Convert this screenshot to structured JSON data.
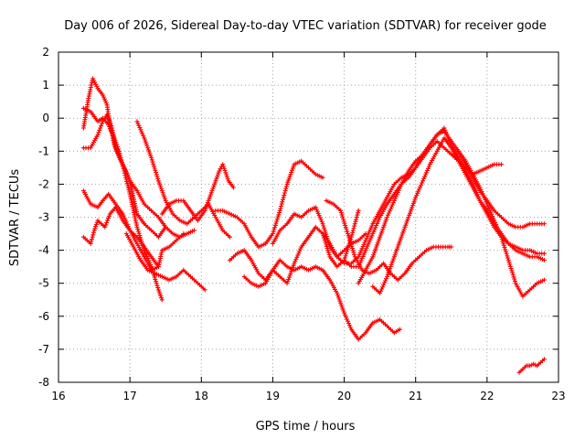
{
  "chart_data": {
    "type": "line",
    "title": "Day 006 of 2026, Sidereal Day-to-day VTEC variation (SDTVAR) for receiver gode",
    "xlabel": "GPS time / hours",
    "ylabel": "SDTVAR / TECUs",
    "xlim": [
      16,
      23
    ],
    "ylim": [
      -8,
      2
    ],
    "xticks": [
      16,
      17,
      18,
      19,
      20,
      21,
      22,
      23
    ],
    "yticks": [
      -8,
      -7,
      -6,
      -5,
      -4,
      -3,
      -2,
      -1,
      0,
      1,
      2
    ],
    "grid": true,
    "marker": "plus",
    "color": "#ff0000",
    "series": [
      {
        "name": "s1",
        "x": [
          16.35,
          16.42,
          16.48,
          16.55,
          16.62,
          16.68,
          16.72,
          16.78,
          16.85,
          16.92,
          17.0,
          17.05,
          17.1,
          17.2,
          17.3,
          17.4,
          17.5
        ],
        "y": [
          -0.3,
          0.6,
          1.2,
          0.9,
          0.7,
          0.4,
          -0.2,
          -0.8,
          -1.2,
          -1.5,
          -1.9,
          -2.4,
          -2.9,
          -3.2,
          -3.4,
          -3.6,
          -3.3
        ]
      },
      {
        "name": "s2",
        "x": [
          16.35,
          16.45,
          16.55,
          16.62,
          16.7,
          16.78,
          16.85,
          16.92,
          17.0,
          17.05,
          17.1,
          17.2,
          17.3,
          17.4,
          17.45
        ],
        "y": [
          0.3,
          0.2,
          -0.1,
          0.0,
          -0.2,
          -0.6,
          -1.0,
          -1.6,
          -2.3,
          -2.8,
          -3.3,
          -4.0,
          -4.5,
          -5.2,
          -5.5
        ]
      },
      {
        "name": "s3",
        "x": [
          16.35,
          16.45,
          16.55,
          16.62,
          16.68,
          16.75,
          16.8,
          16.9,
          17.0,
          17.1,
          17.2,
          17.3,
          17.4,
          17.5,
          17.6,
          17.7,
          17.8,
          17.9
        ],
        "y": [
          -0.9,
          -0.9,
          -0.5,
          -0.1,
          0.1,
          -0.3,
          -0.9,
          -1.4,
          -1.9,
          -2.2,
          -2.6,
          -2.8,
          -3.0,
          -3.3,
          -3.5,
          -3.6,
          -3.5,
          -3.4
        ]
      },
      {
        "name": "s4",
        "x": [
          16.35,
          16.45,
          16.55,
          16.62,
          16.7,
          16.8,
          16.9,
          17.0,
          17.1,
          17.2,
          17.3,
          17.4,
          17.45,
          17.55,
          17.65,
          17.75
        ],
        "y": [
          -2.2,
          -2.6,
          -2.7,
          -2.5,
          -2.3,
          -2.6,
          -2.9,
          -3.4,
          -3.8,
          -4.2,
          -4.6,
          -4.5,
          -4.0,
          -3.9,
          -3.7,
          -3.5
        ]
      },
      {
        "name": "s5",
        "x": [
          16.35,
          16.45,
          16.5,
          16.55,
          16.65,
          16.72,
          16.8,
          16.9,
          17.0,
          17.1,
          17.2,
          17.3,
          17.4
        ],
        "y": [
          -3.6,
          -3.8,
          -3.4,
          -3.1,
          -3.3,
          -2.9,
          -2.7,
          -3.1,
          -3.4,
          -3.6,
          -3.9,
          -4.2,
          -4.5
        ]
      },
      {
        "name": "s6",
        "x": [
          16.95,
          17.05,
          17.15,
          17.25,
          17.35,
          17.45,
          17.55,
          17.65,
          17.75,
          17.85,
          17.95,
          18.05
        ],
        "y": [
          -3.5,
          -3.9,
          -4.3,
          -4.6,
          -4.7,
          -4.8,
          -4.9,
          -4.8,
          -4.6,
          -4.8,
          -5.0,
          -5.2
        ]
      },
      {
        "name": "s7",
        "x": [
          17.1,
          17.2,
          17.3,
          17.4,
          17.5,
          17.6,
          17.7,
          17.8,
          17.9,
          18.0,
          18.1,
          18.2,
          18.3,
          18.4
        ],
        "y": [
          -0.1,
          -0.6,
          -1.2,
          -1.9,
          -2.5,
          -2.9,
          -3.1,
          -3.2,
          -3.0,
          -2.8,
          -2.6,
          -3.0,
          -3.4,
          -3.6
        ]
      },
      {
        "name": "s8",
        "x": [
          17.45,
          17.55,
          17.65,
          17.75,
          17.85,
          17.95,
          18.05,
          18.15,
          18.25,
          18.3,
          18.38,
          18.45
        ],
        "y": [
          -2.9,
          -2.6,
          -2.5,
          -2.5,
          -2.8,
          -3.1,
          -2.8,
          -2.2,
          -1.6,
          -1.4,
          -1.9,
          -2.1
        ]
      },
      {
        "name": "s9",
        "x": [
          18.2,
          18.3,
          18.4,
          18.5,
          18.6,
          18.7,
          18.8,
          18.9,
          19.0,
          19.1,
          19.2,
          19.3,
          19.4,
          19.5,
          19.6,
          19.7
        ],
        "y": [
          -2.8,
          -2.8,
          -2.9,
          -3.0,
          -3.2,
          -3.6,
          -3.9,
          -3.8,
          -3.5,
          -2.8,
          -2.0,
          -1.4,
          -1.3,
          -1.5,
          -1.7,
          -1.8
        ]
      },
      {
        "name": "s10",
        "x": [
          18.4,
          18.5,
          18.6,
          18.7,
          18.8,
          18.9,
          19.0,
          19.1,
          19.2,
          19.3,
          19.4,
          19.5,
          19.6,
          19.7,
          19.8,
          19.9,
          20.0,
          20.1,
          20.2
        ],
        "y": [
          -4.3,
          -4.1,
          -4.0,
          -4.3,
          -4.7,
          -4.9,
          -4.6,
          -4.8,
          -5.0,
          -4.4,
          -3.9,
          -3.6,
          -3.3,
          -3.5,
          -4.2,
          -4.5,
          -4.3,
          -3.6,
          -2.8
        ]
      },
      {
        "name": "s11",
        "x": [
          18.6,
          18.7,
          18.8,
          18.9,
          19.0,
          19.1,
          19.2,
          19.3,
          19.4,
          19.5,
          19.6,
          19.7,
          19.8,
          19.9,
          20.0,
          20.1,
          20.2,
          20.3,
          20.4,
          20.5,
          20.6,
          20.7,
          20.78
        ],
        "y": [
          -4.8,
          -5.0,
          -5.1,
          -5.0,
          -4.6,
          -4.3,
          -4.5,
          -4.6,
          -4.5,
          -4.6,
          -4.5,
          -4.6,
          -4.9,
          -5.3,
          -5.9,
          -6.4,
          -6.7,
          -6.5,
          -6.2,
          -6.1,
          -6.3,
          -6.5,
          -6.4
        ]
      },
      {
        "name": "s12",
        "x": [
          19.0,
          19.1,
          19.2,
          19.3,
          19.4,
          19.5,
          19.6,
          19.7,
          19.8,
          19.9,
          20.0,
          20.1,
          20.2,
          20.3
        ],
        "y": [
          -3.8,
          -3.4,
          -3.2,
          -2.9,
          -3.0,
          -2.8,
          -2.7,
          -3.2,
          -3.9,
          -4.2,
          -4.0,
          -3.8,
          -3.7,
          -3.5
        ]
      },
      {
        "name": "s13",
        "x": [
          19.7,
          19.8,
          19.9,
          20.0,
          20.1,
          20.2,
          20.3,
          20.4,
          20.5,
          20.6,
          20.7,
          20.8,
          20.9,
          21.0,
          21.1,
          21.2,
          21.3,
          21.4,
          21.5,
          21.6,
          21.7,
          21.8,
          21.9,
          22.0,
          22.1,
          22.2
        ],
        "y": [
          -3.5,
          -3.8,
          -4.2,
          -4.4,
          -4.4,
          -4.2,
          -3.7,
          -3.2,
          -2.8,
          -2.4,
          -2.0,
          -1.8,
          -1.7,
          -1.5,
          -1.2,
          -0.9,
          -0.7,
          -0.9,
          -1.1,
          -1.3,
          -1.5,
          -1.7,
          -1.6,
          -1.5,
          -1.4,
          -1.4
        ]
      },
      {
        "name": "s14",
        "x": [
          20.0,
          20.1,
          20.2,
          20.3,
          20.4,
          20.5,
          20.6,
          20.7,
          20.8,
          20.9,
          21.0,
          21.1,
          21.2,
          21.3,
          21.4,
          21.5,
          21.6,
          21.7,
          21.8,
          21.9,
          22.0,
          22.1,
          22.2,
          22.3,
          22.4,
          22.5,
          22.6,
          22.7,
          22.8
        ],
        "y": [
          -4.3,
          -4.5,
          -4.5,
          -4.0,
          -3.5,
          -3.0,
          -2.6,
          -2.3,
          -2.0,
          -1.8,
          -1.5,
          -1.1,
          -0.8,
          -0.5,
          -0.4,
          -0.7,
          -1.0,
          -1.4,
          -1.8,
          -2.2,
          -2.5,
          -2.8,
          -3.0,
          -3.2,
          -3.3,
          -3.3,
          -3.2,
          -3.2,
          -3.2
        ]
      },
      {
        "name": "s15",
        "x": [
          20.2,
          20.3,
          20.4,
          20.5,
          20.6,
          20.7,
          20.8,
          20.9,
          21.0,
          21.1,
          21.2,
          21.3,
          21.4,
          21.5,
          21.6,
          21.7,
          21.8,
          21.9,
          22.0,
          22.1,
          22.2,
          22.3,
          22.4,
          22.5,
          22.6,
          22.7,
          22.8
        ],
        "y": [
          -5.0,
          -4.6,
          -4.2,
          -3.6,
          -3.0,
          -2.5,
          -2.0,
          -1.6,
          -1.3,
          -1.1,
          -0.8,
          -0.5,
          -0.3,
          -0.8,
          -1.2,
          -1.6,
          -2.0,
          -2.5,
          -2.9,
          -3.3,
          -3.6,
          -3.8,
          -3.9,
          -4.0,
          -4.0,
          -4.1,
          -4.1
        ]
      },
      {
        "name": "s16",
        "x": [
          20.4,
          20.5,
          20.6,
          20.7,
          20.8,
          20.9,
          21.0,
          21.1,
          21.2,
          21.3,
          21.4,
          21.5,
          21.6,
          21.7,
          21.8,
          21.9,
          22.0,
          22.1,
          22.2,
          22.3,
          22.4,
          22.5,
          22.6,
          22.7,
          22.8
        ],
        "y": [
          -5.1,
          -5.3,
          -4.8,
          -4.2,
          -3.6,
          -3.0,
          -2.4,
          -1.9,
          -1.4,
          -1.0,
          -0.6,
          -0.9,
          -1.3,
          -1.7,
          -2.1,
          -2.5,
          -2.8,
          -3.2,
          -3.5,
          -3.8,
          -4.0,
          -4.1,
          -4.2,
          -4.2,
          -4.3
        ]
      },
      {
        "name": "s17",
        "x": [
          19.75,
          19.85,
          19.95,
          20.05,
          20.15,
          20.25,
          20.35,
          20.45,
          20.55,
          20.65,
          20.75,
          20.85,
          20.95,
          21.05,
          21.15,
          21.25,
          21.35,
          21.45,
          21.5
        ],
        "y": [
          -2.5,
          -2.6,
          -2.8,
          -3.5,
          -4.2,
          -4.6,
          -4.7,
          -4.6,
          -4.4,
          -4.7,
          -4.9,
          -4.7,
          -4.4,
          -4.2,
          -4.0,
          -3.9,
          -3.9,
          -3.9,
          -3.9
        ]
      },
      {
        "name": "s18",
        "x": [
          21.6,
          21.7,
          21.8,
          21.9,
          22.0,
          22.1,
          22.2,
          22.3,
          22.4,
          22.5,
          22.6,
          22.7,
          22.8
        ],
        "y": [
          -1.0,
          -1.3,
          -1.7,
          -2.1,
          -2.6,
          -3.1,
          -3.6,
          -4.3,
          -5.0,
          -5.4,
          -5.2,
          -5.0,
          -4.9
        ]
      },
      {
        "name": "s19",
        "x": [
          22.45,
          22.5,
          22.55,
          22.6,
          22.65,
          22.7,
          22.75,
          22.8
        ],
        "y": [
          -7.7,
          -7.6,
          -7.5,
          -7.5,
          -7.45,
          -7.5,
          -7.4,
          -7.3
        ]
      }
    ]
  }
}
